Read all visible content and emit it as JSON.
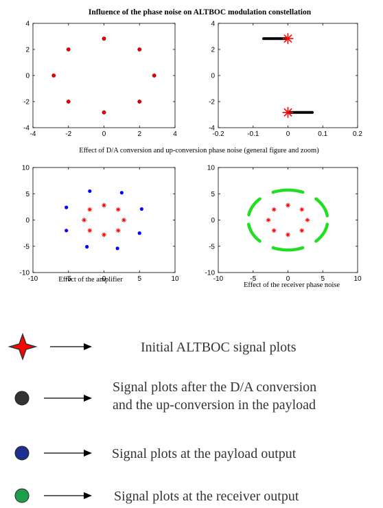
{
  "figure": {
    "title": "Influence of the phase noise on ALTBOC modulation constellation",
    "caption_top": "Effect of D/A conversion and up-conversion phase noise (general figure and zoom)",
    "caption_amp": "Effect of the amplifier",
    "caption_rx": "Effect of the receiver phase noise"
  },
  "colors": {
    "initial": "#ff0000",
    "after_da": "#000000",
    "payload": "#0000ff",
    "receiver": "#22dd22"
  },
  "chart_data": [
    {
      "id": "top-left",
      "type": "scatter",
      "title": "",
      "xlabel": "",
      "ylabel": "",
      "xlim": [
        -4,
        4
      ],
      "ylim": [
        -4,
        4
      ],
      "xticks": [
        -4,
        -2,
        0,
        2,
        4
      ],
      "yticks": [
        -4,
        -2,
        0,
        2,
        4
      ],
      "series": [
        {
          "kind": "dot",
          "color": "#000000",
          "points": [
            [
              0,
              2.83
            ],
            [
              2,
              2
            ],
            [
              2.83,
              0
            ],
            [
              2,
              -2
            ],
            [
              0,
              -2.83
            ],
            [
              -2,
              -2
            ],
            [
              -2.83,
              0
            ],
            [
              -2,
              2
            ]
          ]
        },
        {
          "kind": "star",
          "color": "#ff0000",
          "points": [
            [
              0,
              2.83
            ],
            [
              2,
              2
            ],
            [
              2.83,
              0
            ],
            [
              2,
              -2
            ],
            [
              0,
              -2.83
            ],
            [
              -2,
              -2
            ],
            [
              -2.83,
              0
            ],
            [
              -2,
              2
            ]
          ]
        }
      ]
    },
    {
      "id": "top-right",
      "type": "scatter",
      "title": "",
      "xlabel": "",
      "ylabel": "",
      "xlim": [
        -0.2,
        0.2
      ],
      "ylim": [
        -4,
        4
      ],
      "xticks": [
        -0.2,
        -0.1,
        0,
        0.1,
        0.2
      ],
      "yticks": [
        -4,
        -2,
        0,
        2,
        4
      ],
      "series": [
        {
          "kind": "segment",
          "color": "#000000",
          "segments": [
            [
              [
                -0.07,
                2.83
              ],
              [
                0,
                2.83
              ]
            ],
            [
              [
                0,
                -2.83
              ],
              [
                0.07,
                -2.83
              ]
            ]
          ]
        },
        {
          "kind": "bigstar",
          "color": "#ff0000",
          "points": [
            [
              0,
              2.83
            ],
            [
              0,
              -2.83
            ]
          ]
        }
      ]
    },
    {
      "id": "bottom-left",
      "type": "scatter",
      "title": "",
      "xlabel": "",
      "ylabel": "",
      "xlim": [
        -10,
        10
      ],
      "ylim": [
        -10,
        10
      ],
      "xticks": [
        -10,
        -5,
        0,
        5,
        10
      ],
      "yticks": [
        -10,
        -5,
        0,
        5,
        10
      ],
      "series": [
        {
          "kind": "star",
          "color": "#ff0000",
          "points": [
            [
              0,
              2.8
            ],
            [
              2,
              2
            ],
            [
              2.8,
              0
            ],
            [
              2,
              -2
            ],
            [
              0,
              -2.8
            ],
            [
              -2,
              -2
            ],
            [
              -2.8,
              0
            ],
            [
              -2,
              2
            ]
          ]
        },
        {
          "kind": "dot",
          "color": "#0000ff",
          "points": [
            [
              -2,
              5.5
            ],
            [
              2.5,
              5.2
            ],
            [
              -5.3,
              2.4
            ],
            [
              5.3,
              2.1
            ],
            [
              -5.3,
              -2
            ],
            [
              5,
              -2.5
            ],
            [
              -2.4,
              -5.1
            ],
            [
              1.9,
              -5.4
            ]
          ]
        }
      ]
    },
    {
      "id": "bottom-right",
      "type": "scatter",
      "title": "",
      "xlabel": "",
      "ylabel": "",
      "xlim": [
        -10,
        10
      ],
      "ylim": [
        -10,
        10
      ],
      "xticks": [
        -10,
        -5,
        0,
        5,
        10
      ],
      "yticks": [
        -10,
        -5,
        0,
        5,
        10
      ],
      "series": [
        {
          "kind": "star",
          "color": "#ff0000",
          "points": [
            [
              0,
              2.8
            ],
            [
              2,
              2
            ],
            [
              2.8,
              0
            ],
            [
              2,
              -2
            ],
            [
              0,
              -2.8
            ],
            [
              -2,
              -2
            ],
            [
              -2.8,
              0
            ],
            [
              -2,
              2
            ]
          ]
        },
        {
          "kind": "arc",
          "color": "#22dd22",
          "radius": 5.7,
          "arcs_deg": [
            [
              68,
              112
            ],
            [
              135,
              170
            ],
            [
              188,
              225
            ],
            [
              248,
              292
            ],
            [
              315,
              352
            ],
            [
              8,
              45
            ]
          ]
        }
      ]
    }
  ],
  "legend": [
    {
      "symbol": "star",
      "color": "#ff0000",
      "label": "Initial ALTBOC signal plots"
    },
    {
      "symbol": "circle",
      "color": "#333333",
      "label": "Signal plots after the D/A conversion\nand the up-conversion in the payload"
    },
    {
      "symbol": "circle",
      "color": "#1f2f8f",
      "label": "Signal plots at the payload output"
    },
    {
      "symbol": "circle",
      "color": "#1e9e4a",
      "label": "Signal plots at the receiver output"
    }
  ]
}
